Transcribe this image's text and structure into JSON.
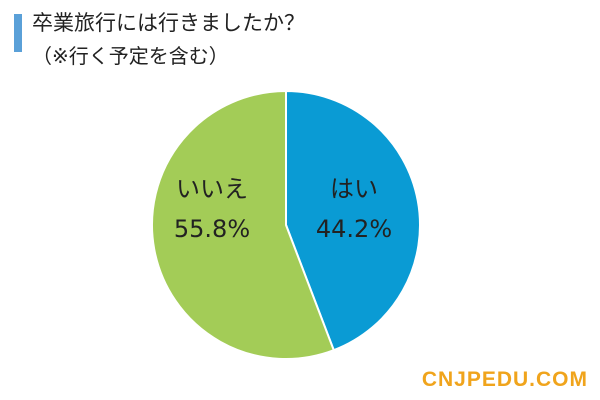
{
  "header": {
    "title": "卒業旅行には行きましたか？",
    "subtitle": "（※行く予定を含む）"
  },
  "chart_data": {
    "type": "pie",
    "title": "卒業旅行には行きましたか？",
    "subtitle": "（※行く予定を含む）",
    "slices": [
      {
        "label": "はい",
        "value": 44.2,
        "display": "44.2%",
        "color": "#0a9bd4"
      },
      {
        "label": "いいえ",
        "value": 55.8,
        "display": "55.8%",
        "color": "#a3cc57"
      }
    ],
    "start_angle": "12 o'clock",
    "direction": "clockwise",
    "legend": "none (labels inside slices)"
  },
  "watermark": "CNJPEDU.COM",
  "colors": {
    "accent_bar": "#5aa0d8",
    "watermark": "#f0a41c"
  }
}
